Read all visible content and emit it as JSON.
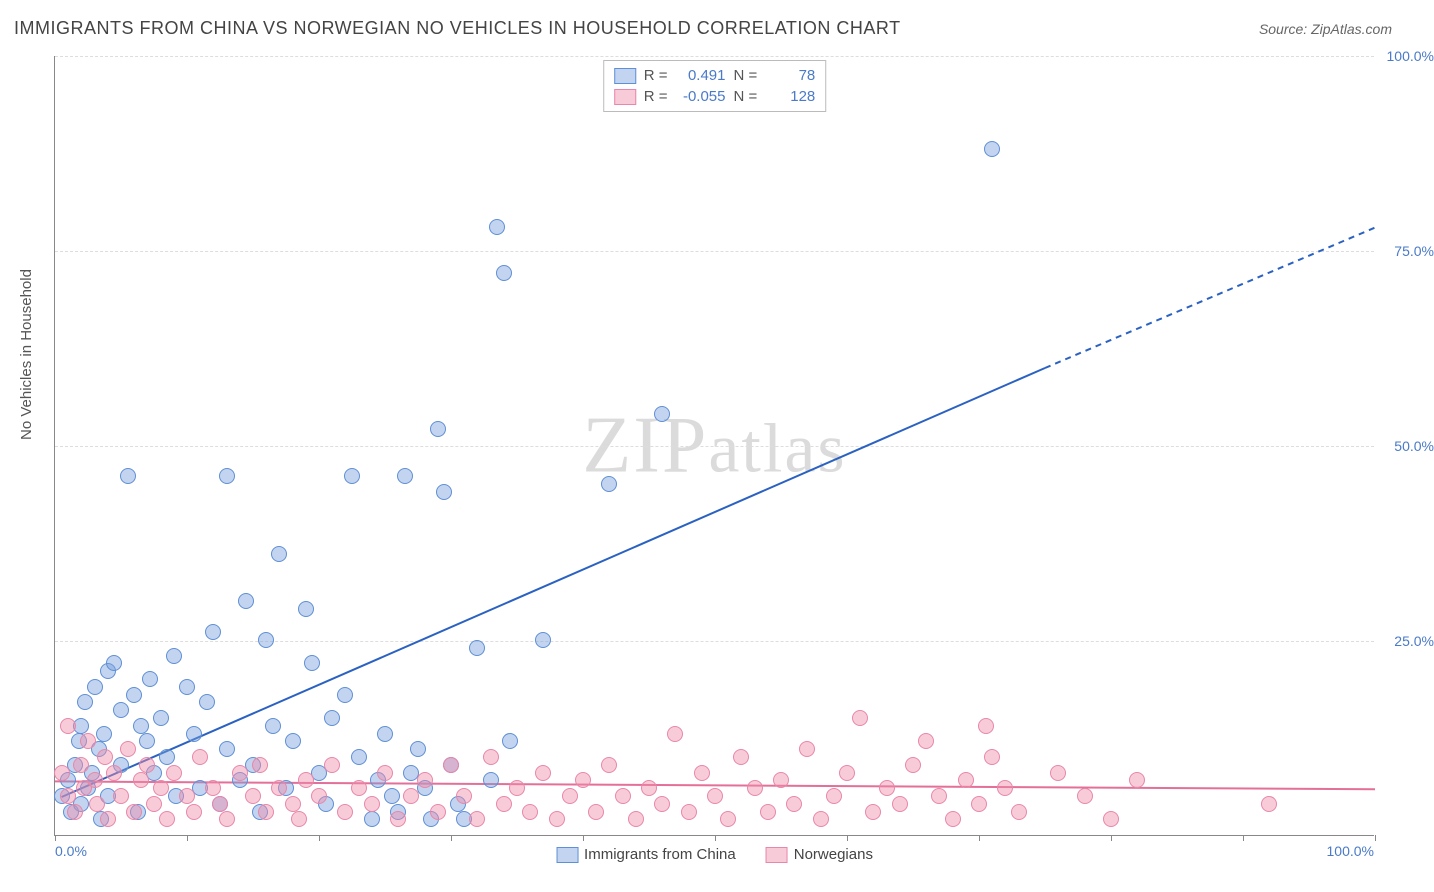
{
  "title": "IMMIGRANTS FROM CHINA VS NORWEGIAN NO VEHICLES IN HOUSEHOLD CORRELATION CHART",
  "source_label": "Source: ",
  "source_name": "ZipAtlas.com",
  "ylabel": "No Vehicles in Household",
  "watermark": "ZIPatlas",
  "xlim": [
    0,
    100
  ],
  "ylim": [
    0,
    100
  ],
  "xtick_label_min": "0.0%",
  "xtick_label_max": "100.0%",
  "ytick_labels": [
    "25.0%",
    "50.0%",
    "75.0%",
    "100.0%"
  ],
  "ytick_values": [
    25,
    50,
    75,
    100
  ],
  "xtick_marks": [
    0,
    10,
    20,
    30,
    40,
    50,
    60,
    70,
    80,
    90,
    100
  ],
  "grid_color": "#dddddd",
  "axis_color": "#888888",
  "tick_label_color": "#4a7ac8",
  "marker_radius": 8,
  "series": [
    {
      "name": "Immigrants from China",
      "legend_label": "Immigrants from China",
      "fill": "rgba(120,160,220,0.45)",
      "stroke": "#5f8fd6",
      "R": "0.491",
      "N": "78",
      "trend": {
        "x1": 0.5,
        "y1": 5,
        "x2": 75,
        "y2": 60,
        "dash_x2": 100,
        "dash_y2": 78,
        "color": "#2b62c2",
        "width": 2
      },
      "points": [
        [
          0.5,
          5
        ],
        [
          1,
          7
        ],
        [
          1.2,
          3
        ],
        [
          1.5,
          9
        ],
        [
          1.8,
          12
        ],
        [
          2,
          14
        ],
        [
          2,
          4
        ],
        [
          2.3,
          17
        ],
        [
          2.5,
          6
        ],
        [
          2.8,
          8
        ],
        [
          3,
          19
        ],
        [
          3.3,
          11
        ],
        [
          3.5,
          2
        ],
        [
          3.7,
          13
        ],
        [
          4,
          21
        ],
        [
          4,
          5
        ],
        [
          4.5,
          22
        ],
        [
          5,
          9
        ],
        [
          5,
          16
        ],
        [
          5.5,
          46
        ],
        [
          6,
          18
        ],
        [
          6.3,
          3
        ],
        [
          6.5,
          14
        ],
        [
          7,
          12
        ],
        [
          7.2,
          20
        ],
        [
          7.5,
          8
        ],
        [
          8,
          15
        ],
        [
          8.5,
          10
        ],
        [
          9,
          23
        ],
        [
          9.2,
          5
        ],
        [
          10,
          19
        ],
        [
          10.5,
          13
        ],
        [
          11,
          6
        ],
        [
          11.5,
          17
        ],
        [
          12,
          26
        ],
        [
          12.5,
          4
        ],
        [
          13,
          11
        ],
        [
          13,
          46
        ],
        [
          14,
          7
        ],
        [
          14.5,
          30
        ],
        [
          15,
          9
        ],
        [
          15.5,
          3
        ],
        [
          16,
          25
        ],
        [
          16.5,
          14
        ],
        [
          17,
          36
        ],
        [
          17.5,
          6
        ],
        [
          18,
          12
        ],
        [
          19,
          29
        ],
        [
          19.5,
          22
        ],
        [
          20,
          8
        ],
        [
          20.5,
          4
        ],
        [
          21,
          15
        ],
        [
          22,
          18
        ],
        [
          22.5,
          46
        ],
        [
          23,
          10
        ],
        [
          24,
          2
        ],
        [
          24.5,
          7
        ],
        [
          25,
          13
        ],
        [
          25.5,
          5
        ],
        [
          26,
          3
        ],
        [
          26.5,
          46
        ],
        [
          27,
          8
        ],
        [
          27.5,
          11
        ],
        [
          28,
          6
        ],
        [
          28.5,
          2
        ],
        [
          29,
          52
        ],
        [
          29.5,
          44
        ],
        [
          30,
          9
        ],
        [
          30.5,
          4
        ],
        [
          31,
          2
        ],
        [
          32,
          24
        ],
        [
          33,
          7
        ],
        [
          33.5,
          78
        ],
        [
          34,
          72
        ],
        [
          34.5,
          12
        ],
        [
          37,
          25
        ],
        [
          42,
          45
        ],
        [
          46,
          54
        ],
        [
          71,
          88
        ]
      ]
    },
    {
      "name": "Norwegians",
      "legend_label": "Norwegians",
      "fill": "rgba(240,140,170,0.45)",
      "stroke": "#e887a9",
      "R": "-0.055",
      "N": "128",
      "trend": {
        "x1": 0,
        "y1": 7,
        "x2": 100,
        "y2": 6,
        "color": "#e46f98",
        "width": 2
      },
      "points": [
        [
          0.5,
          8
        ],
        [
          1,
          5
        ],
        [
          1,
          14
        ],
        [
          1.5,
          3
        ],
        [
          2,
          9
        ],
        [
          2.2,
          6
        ],
        [
          2.5,
          12
        ],
        [
          3,
          7
        ],
        [
          3.2,
          4
        ],
        [
          3.8,
          10
        ],
        [
          4,
          2
        ],
        [
          4.5,
          8
        ],
        [
          5,
          5
        ],
        [
          5.5,
          11
        ],
        [
          6,
          3
        ],
        [
          6.5,
          7
        ],
        [
          7,
          9
        ],
        [
          7.5,
          4
        ],
        [
          8,
          6
        ],
        [
          8.5,
          2
        ],
        [
          9,
          8
        ],
        [
          10,
          5
        ],
        [
          10.5,
          3
        ],
        [
          11,
          10
        ],
        [
          12,
          6
        ],
        [
          12.5,
          4
        ],
        [
          13,
          2
        ],
        [
          14,
          8
        ],
        [
          15,
          5
        ],
        [
          15.5,
          9
        ],
        [
          16,
          3
        ],
        [
          17,
          6
        ],
        [
          18,
          4
        ],
        [
          18.5,
          2
        ],
        [
          19,
          7
        ],
        [
          20,
          5
        ],
        [
          21,
          9
        ],
        [
          22,
          3
        ],
        [
          23,
          6
        ],
        [
          24,
          4
        ],
        [
          25,
          8
        ],
        [
          26,
          2
        ],
        [
          27,
          5
        ],
        [
          28,
          7
        ],
        [
          29,
          3
        ],
        [
          30,
          9
        ],
        [
          31,
          5
        ],
        [
          32,
          2
        ],
        [
          33,
          10
        ],
        [
          34,
          4
        ],
        [
          35,
          6
        ],
        [
          36,
          3
        ],
        [
          37,
          8
        ],
        [
          38,
          2
        ],
        [
          39,
          5
        ],
        [
          40,
          7
        ],
        [
          41,
          3
        ],
        [
          42,
          9
        ],
        [
          43,
          5
        ],
        [
          44,
          2
        ],
        [
          45,
          6
        ],
        [
          46,
          4
        ],
        [
          47,
          13
        ],
        [
          48,
          3
        ],
        [
          49,
          8
        ],
        [
          50,
          5
        ],
        [
          51,
          2
        ],
        [
          52,
          10
        ],
        [
          53,
          6
        ],
        [
          54,
          3
        ],
        [
          55,
          7
        ],
        [
          56,
          4
        ],
        [
          57,
          11
        ],
        [
          58,
          2
        ],
        [
          59,
          5
        ],
        [
          60,
          8
        ],
        [
          61,
          15
        ],
        [
          62,
          3
        ],
        [
          63,
          6
        ],
        [
          64,
          4
        ],
        [
          65,
          9
        ],
        [
          66,
          12
        ],
        [
          67,
          5
        ],
        [
          68,
          2
        ],
        [
          69,
          7
        ],
        [
          70,
          4
        ],
        [
          70.5,
          14
        ],
        [
          71,
          10
        ],
        [
          72,
          6
        ],
        [
          73,
          3
        ],
        [
          76,
          8
        ],
        [
          78,
          5
        ],
        [
          80,
          2
        ],
        [
          82,
          7
        ],
        [
          92,
          4
        ]
      ]
    }
  ],
  "stats_box": {
    "r_label": "R =",
    "n_label": "N ="
  },
  "background_color": "#ffffff"
}
